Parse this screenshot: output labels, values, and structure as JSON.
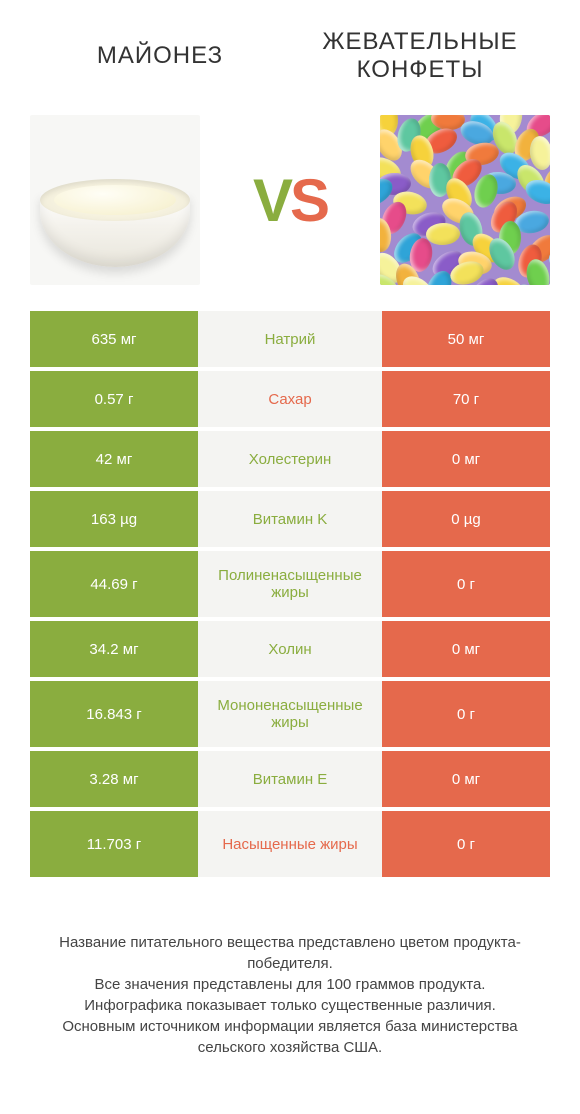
{
  "colors": {
    "green": "#8aad3f",
    "orange": "#e5694c",
    "mid_bg": "#f4f4f2",
    "page_bg": "#ffffff",
    "text": "#333333"
  },
  "header": {
    "left_title": "МАЙОНЕЗ",
    "right_title_line1": "ЖЕВАТЕЛЬНЫЕ",
    "right_title_line2": "КОНФЕТЫ"
  },
  "vs": {
    "v": "V",
    "s": "S"
  },
  "rows": [
    {
      "left": "635 мг",
      "mid": "Натрий",
      "right": "50 мг",
      "winner": "left",
      "tall": false
    },
    {
      "left": "0.57 г",
      "mid": "Сахар",
      "right": "70 г",
      "winner": "right",
      "tall": false
    },
    {
      "left": "42 мг",
      "mid": "Холестерин",
      "right": "0 мг",
      "winner": "left",
      "tall": false
    },
    {
      "left": "163 µg",
      "mid": "Витамин K",
      "right": "0 µg",
      "winner": "left",
      "tall": false
    },
    {
      "left": "44.69 г",
      "mid": "Полиненасыщенные жиры",
      "right": "0 г",
      "winner": "left",
      "tall": true
    },
    {
      "left": "34.2 мг",
      "mid": "Холин",
      "right": "0 мг",
      "winner": "left",
      "tall": false
    },
    {
      "left": "16.843 г",
      "mid": "Мононенасыщенные жиры",
      "right": "0 г",
      "winner": "left",
      "tall": true
    },
    {
      "left": "3.28 мг",
      "mid": "Витамин E",
      "right": "0 мг",
      "winner": "left",
      "tall": false
    },
    {
      "left": "11.703 г",
      "mid": "Насыщенные жиры",
      "right": "0 г",
      "winner": "right",
      "tall": true
    }
  ],
  "footer": {
    "l1": "Название питательного вещества представлено цветом продукта-победителя.",
    "l2": "Все значения представлены для 100 граммов продукта.",
    "l3": "Инфографика показывает только существенные различия.",
    "l4": "Основным источником информации является база министерства сельского хозяйства США."
  },
  "candy_colors": [
    "#f6d23b",
    "#6fcf4e",
    "#f07a3c",
    "#3bb2e6",
    "#f6f29a",
    "#e64c8a",
    "#8a5cc8",
    "#ffd36b",
    "#5ec7a0",
    "#ef5c3e",
    "#4aa8e0",
    "#c9e66b",
    "#f2b23d",
    "#2fa4d8",
    "#f3e15a"
  ]
}
